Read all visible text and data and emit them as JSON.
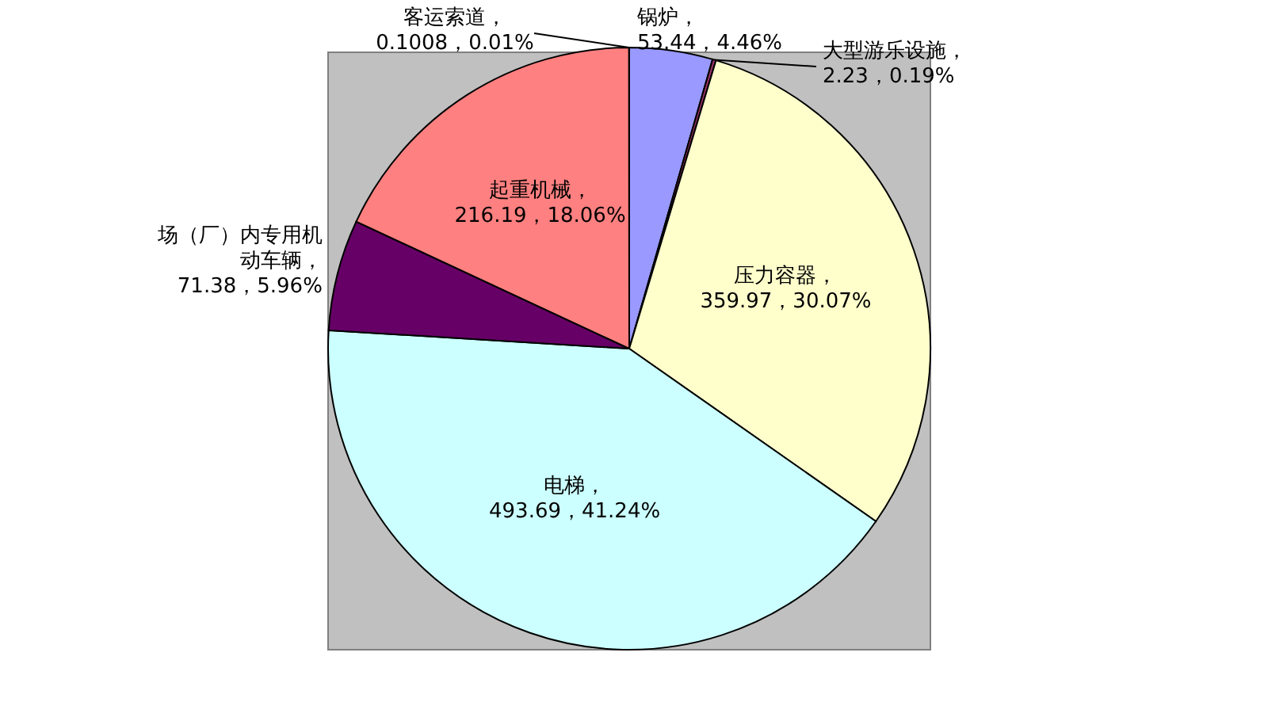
{
  "chart_data": {
    "type": "pie",
    "categories": [
      "锅炉",
      "大型游乐设施",
      "压力容器",
      "电梯",
      "场（厂）内专用机动车辆",
      "起重机械",
      "客运索道"
    ],
    "values": [
      53.44,
      2.23,
      359.97,
      493.69,
      71.38,
      216.19,
      0.1008
    ],
    "colors": [
      "#9999ff",
      "#993366",
      "#ffffcc",
      "#ccffff",
      "#660066",
      "#ff8080",
      "#ff8080"
    ],
    "value_labels": [
      "，53.44，4.46%",
      "，2.23，0.19%",
      "，359.97，30.07%",
      "，493.69，41.24%",
      "，71.38，5.96%",
      "，216.19，18.06%",
      "，0.1008，0.01%"
    ]
  }
}
